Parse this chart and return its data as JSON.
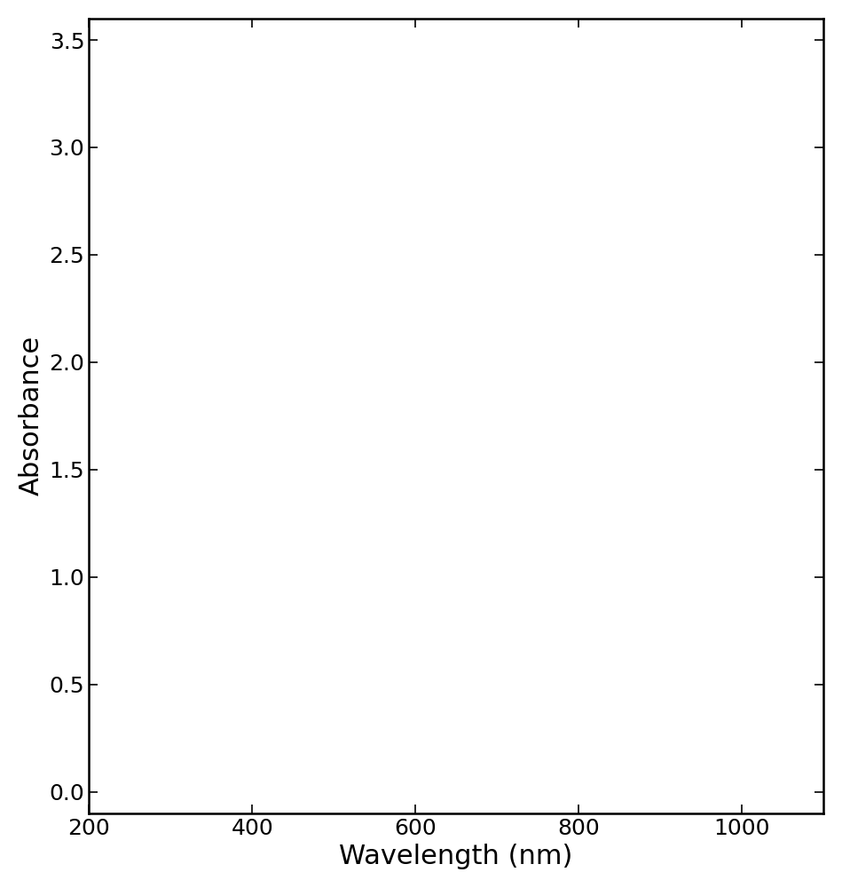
{
  "title": "",
  "xlabel": "Wavelength (nm)",
  "ylabel": "Absorbance",
  "xlim": [
    200,
    1100
  ],
  "ylim": [
    -0.1,
    3.6
  ],
  "yticks": [
    0.0,
    0.5,
    1.0,
    1.5,
    2.0,
    2.5,
    3.0,
    3.5
  ],
  "xticks": [
    200,
    400,
    600,
    800,
    1000
  ],
  "background_color": "#ffffff",
  "line_color": "#000000",
  "xlabel_fontsize": 22,
  "ylabel_fontsize": 22,
  "tick_fontsize": 18,
  "annotation_fontsize": 15
}
